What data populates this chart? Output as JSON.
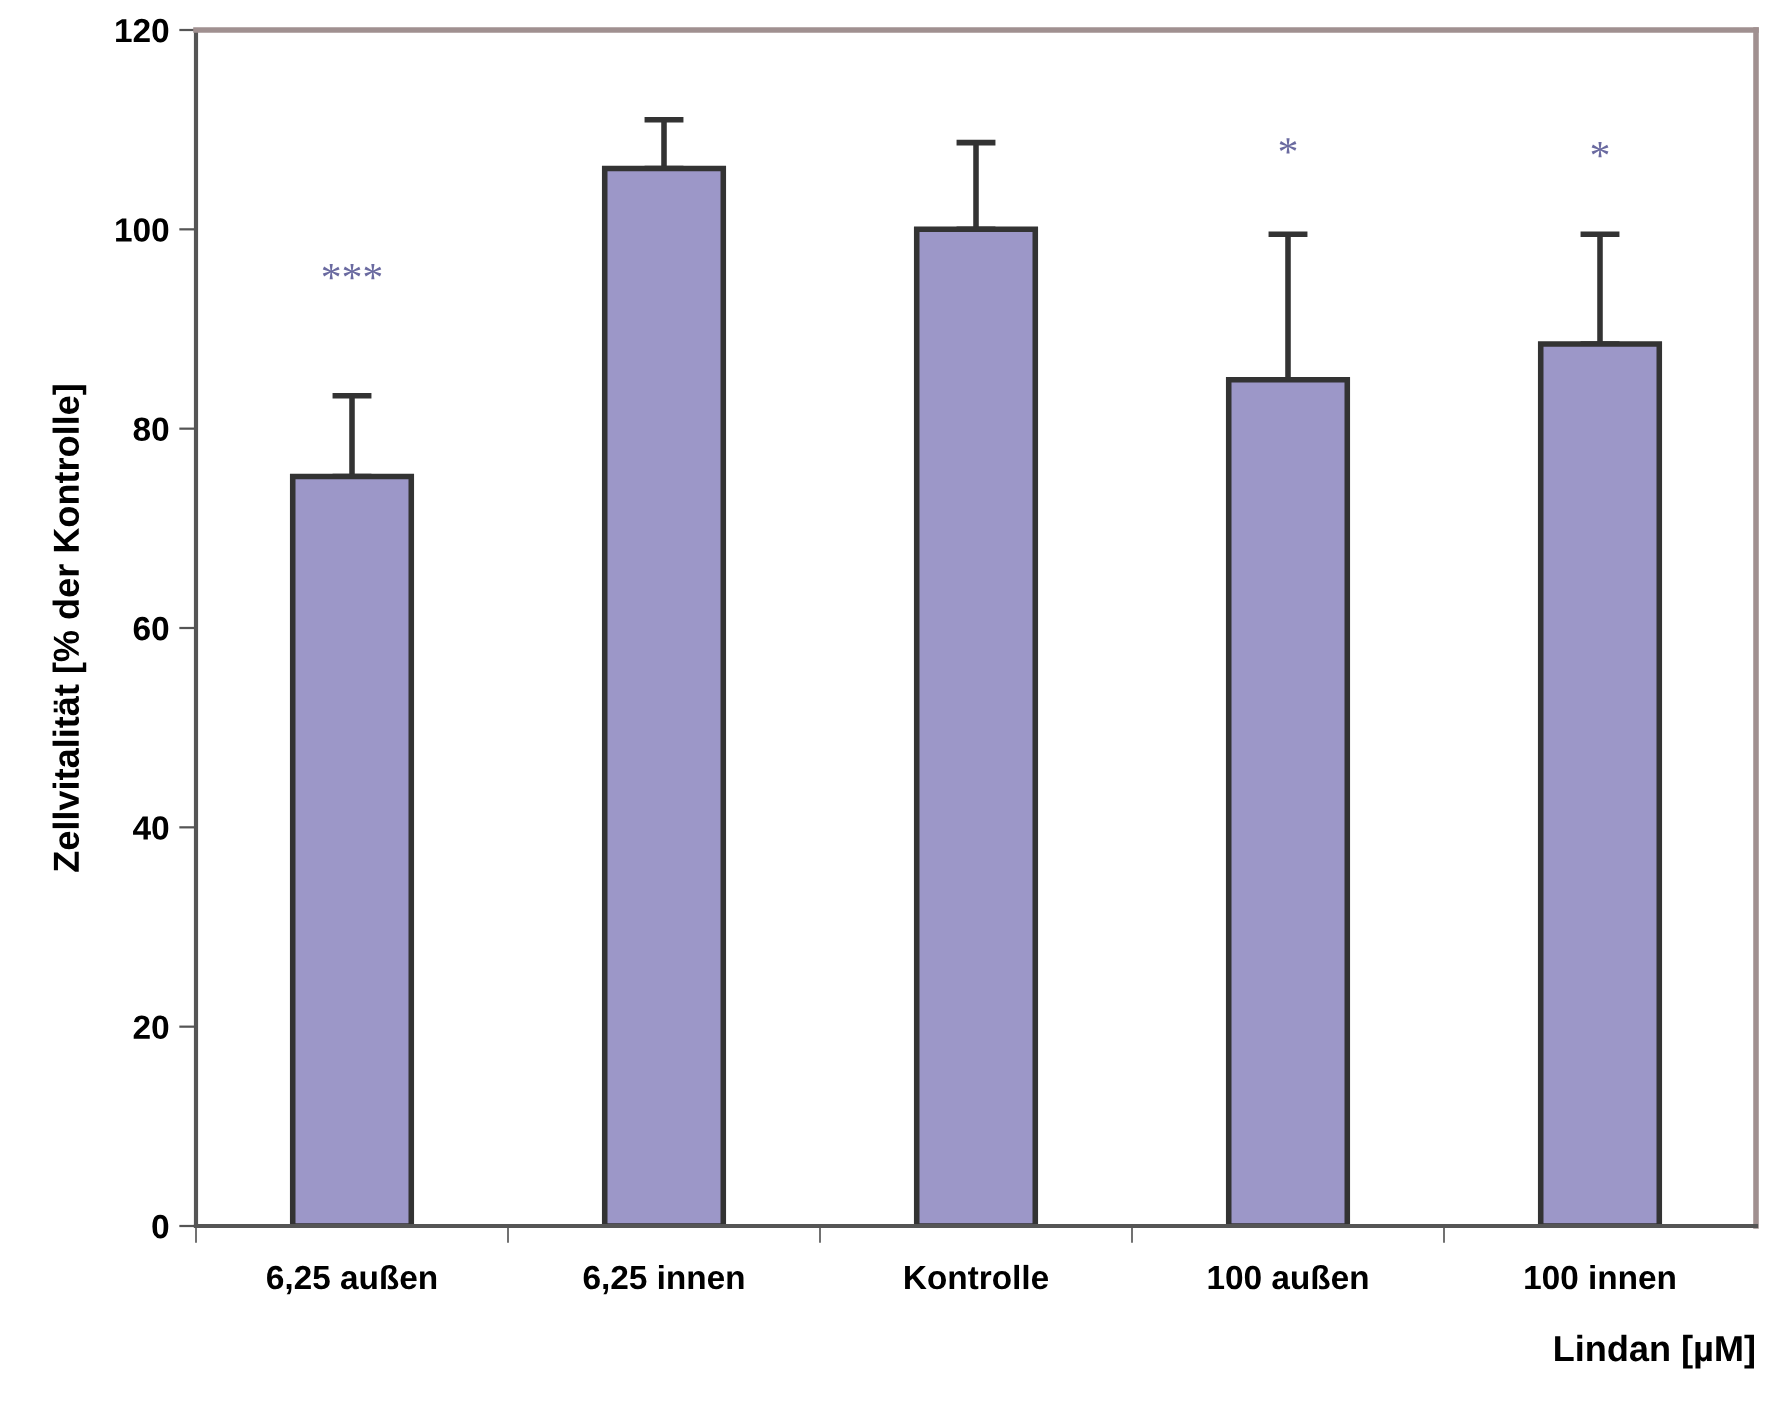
{
  "chart_data": {
    "type": "bar",
    "categories": [
      "6,25 außen",
      "6,25 innen",
      "Kontrolle",
      "100 außen",
      "100 innen"
    ],
    "values": [
      75.2,
      106.1,
      100.0,
      84.9,
      88.5
    ],
    "errors": [
      [
        75.2,
        83.3
      ],
      [
        106.1,
        111.0
      ],
      [
        100.0,
        108.7
      ],
      [
        84.9,
        99.5
      ],
      [
        88.5,
        99.5
      ]
    ],
    "color": "#9c97c8",
    "xlabel": "Lindan [µM]",
    "ylabel": "Zellvitalität [% der Kontrolle]",
    "ylim": [
      0,
      120
    ],
    "yticks": [
      0,
      20,
      40,
      60,
      80,
      100,
      120
    ],
    "grid": false,
    "legend": false,
    "annotations": [
      "***",
      "*",
      "*"
    ]
  }
}
